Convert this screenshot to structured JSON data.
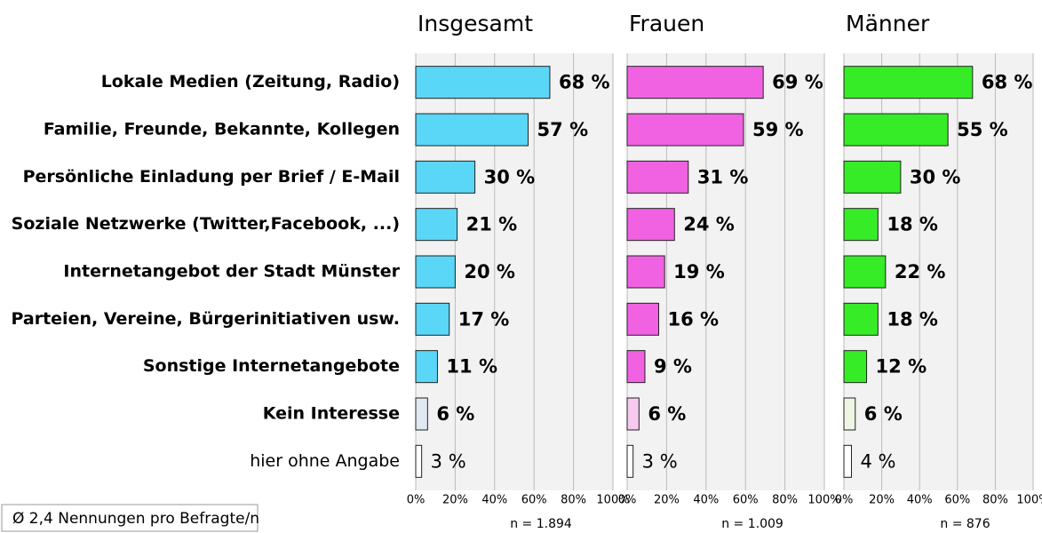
{
  "chart_data": {
    "type": "bar",
    "orientation": "horizontal",
    "categories": [
      "Lokale Medien (Zeitung, Radio)",
      "Familie, Freunde, Bekannte, Kollegen",
      "Persönliche Einladung per Brief / E-Mail",
      "Soziale Netzwerke (Twitter,Facebook, ...)",
      "Internetangebot der Stadt Münster",
      "Parteien, Vereine, Bürgerinitiativen usw.",
      "Sonstige Internetangebote",
      "Kein Interesse",
      "hier ohne Angabe"
    ],
    "series": [
      {
        "name": "Insgesamt",
        "note": "n = 1.894",
        "colors": [
          "#5ad6f7",
          "#5ad6f7",
          "#5ad6f7",
          "#5ad6f7",
          "#5ad6f7",
          "#5ad6f7",
          "#5ad6f7",
          "#e2e8f2",
          "#ffffff"
        ],
        "values": [
          68,
          57,
          30,
          21,
          20,
          17,
          11,
          6,
          3
        ],
        "value_labels": [
          "68 %",
          "57 %",
          "30 %",
          "21 %",
          "20 %",
          "17 %",
          "11 %",
          "6 %",
          "3 %"
        ]
      },
      {
        "name": "Frauen",
        "note": "n = 1.009",
        "colors": [
          "#f062e2",
          "#f062e2",
          "#f062e2",
          "#f062e2",
          "#f062e2",
          "#f062e2",
          "#f062e2",
          "#f6c9ef",
          "#ffffff"
        ],
        "values": [
          69,
          59,
          31,
          24,
          19,
          16,
          9,
          6,
          3
        ],
        "value_labels": [
          "69 %",
          "59 %",
          "31 %",
          "24 %",
          "19 %",
          "16 %",
          "9 %",
          "6 %",
          "3 %"
        ]
      },
      {
        "name": "Männer",
        "note": "n = 876",
        "colors": [
          "#36ec26",
          "#36ec26",
          "#36ec26",
          "#36ec26",
          "#36ec26",
          "#36ec26",
          "#36ec26",
          "#eef5e2",
          "#ffffff"
        ],
        "values": [
          68,
          55,
          30,
          18,
          22,
          18,
          12,
          6,
          4
        ],
        "value_labels": [
          "68 %",
          "55 %",
          "30 %",
          "18 %",
          "22 %",
          "18 %",
          "12 %",
          "6 %",
          "4 %"
        ]
      }
    ],
    "xlim": [
      0,
      100
    ],
    "xticks": [
      {
        "value": 0,
        "label": "0%"
      },
      {
        "value": 20,
        "label": "20%"
      },
      {
        "value": 40,
        "label": "40%"
      },
      {
        "value": 60,
        "label": "60%"
      },
      {
        "value": 80,
        "label": "80%"
      },
      {
        "value": 100,
        "label": "100%"
      }
    ],
    "grid": true,
    "footnote": "Ø 2,4 Nennungen pro Befragte/n"
  }
}
